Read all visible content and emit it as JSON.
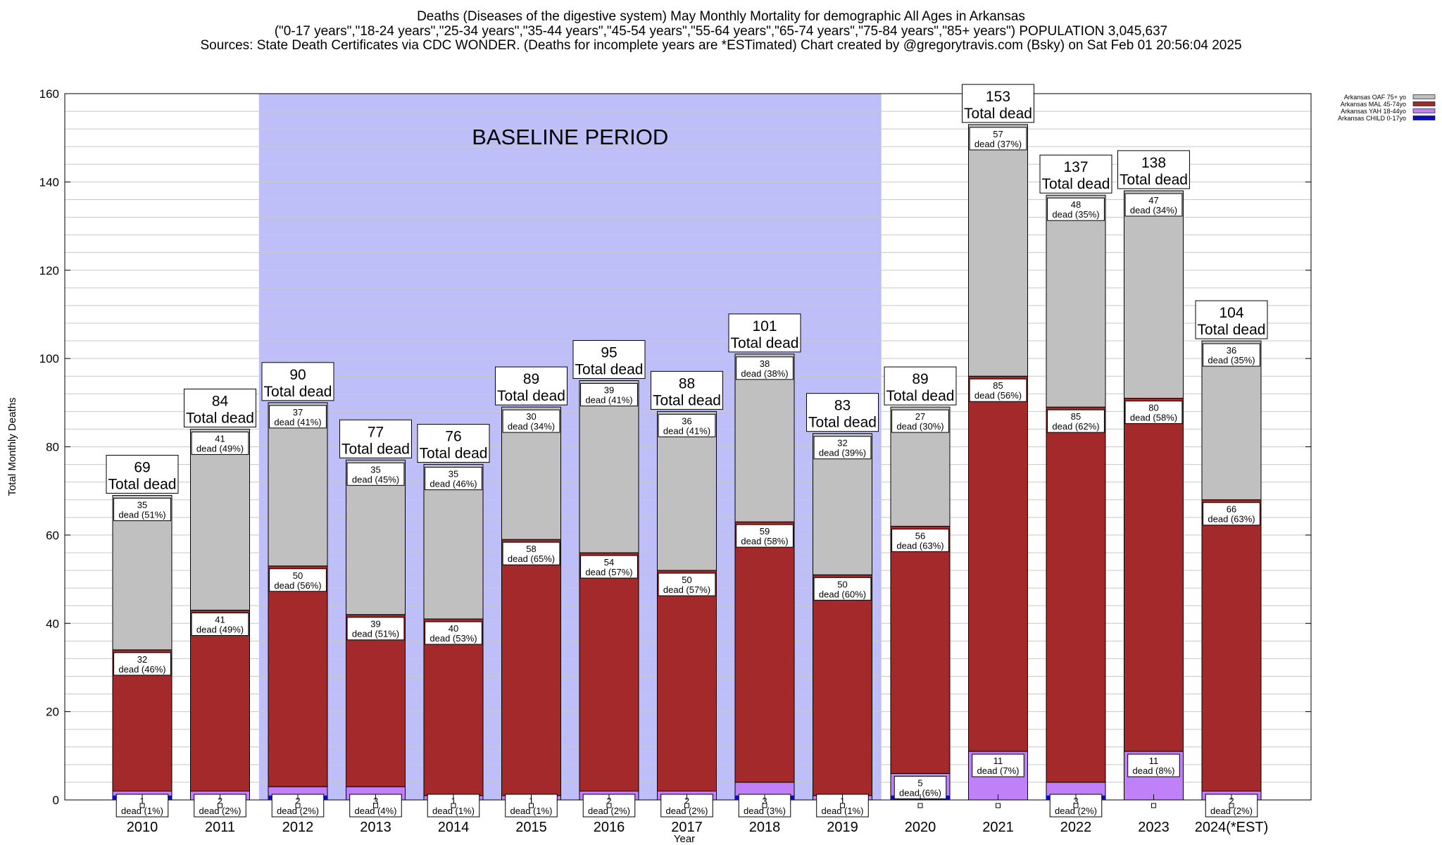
{
  "title": {
    "line1": "Deaths (Diseases of the digestive system) May Monthly Mortality for demographic All Ages in Arkansas",
    "line2": "(\"0-17 years\",\"18-24 years\",\"25-34 years\",\"35-44 years\",\"45-54 years\",\"55-64 years\",\"65-74 years\",\"75-84 years\",\"85+ years\") POPULATION 3,045,637",
    "line3": "Sources: State Death Certificates via CDC WONDER. (Deaths for incomplete years are *ESTimated)                Chart created by @gregorytravis.com (Bsky) on Sat Feb 01 20:56:04 2025"
  },
  "colors": {
    "child": "#0a0ad0",
    "yah": "#c080f8",
    "mal": "#a4292a",
    "oaf": "#c0c0c0",
    "baseline": "#bebef8",
    "grid": "#c8c8c8"
  },
  "chart_data": {
    "type": "bar",
    "stacked": true,
    "xlabel": "Year",
    "ylabel": "Total Monthly Deaths",
    "ylim": [
      0,
      160
    ],
    "yticks": [
      0,
      20,
      40,
      60,
      80,
      100,
      120,
      140,
      160
    ],
    "grid": true,
    "legend_position": "top-right",
    "baseline_label": "BASELINE PERIOD",
    "baseline_range": [
      "2012",
      "2019"
    ],
    "total_label": "Total dead",
    "dead_word": "dead",
    "categories": [
      "2010",
      "2011",
      "2012",
      "2013",
      "2014",
      "2015",
      "2016",
      "2017",
      "2018",
      "2019",
      "2020",
      "2021",
      "2022",
      "2023",
      "2024(*EST)"
    ],
    "totals": [
      69,
      84,
      90,
      77,
      76,
      89,
      95,
      88,
      101,
      83,
      89,
      153,
      137,
      138,
      104
    ],
    "series": [
      {
        "name": "Arkansas CHILD 0-17yo",
        "key": "child",
        "values": [
          1,
          0,
          1,
          0,
          0,
          0,
          0,
          0,
          1,
          0,
          1,
          0,
          1,
          0,
          0
        ]
      },
      {
        "name": "Arkansas YAH 18-44yo",
        "key": "yah",
        "values": [
          1,
          2,
          2,
          3,
          1,
          1,
          2,
          2,
          3,
          1,
          5,
          11,
          3,
          11,
          2
        ],
        "percents": [
          "1%",
          "2%",
          "2%",
          "4%",
          "1%",
          "1%",
          "2%",
          "2%",
          "3%",
          "1%",
          "6%",
          "7%",
          "2%",
          "8%",
          "2%"
        ]
      },
      {
        "name": "Arkansas MAL 45-74yo",
        "key": "mal",
        "values": [
          32,
          41,
          50,
          39,
          40,
          58,
          54,
          50,
          59,
          50,
          56,
          85,
          85,
          80,
          66
        ],
        "percents": [
          "46%",
          "49%",
          "56%",
          "51%",
          "53%",
          "65%",
          "57%",
          "57%",
          "58%",
          "60%",
          "63%",
          "56%",
          "62%",
          "58%",
          "63%"
        ]
      },
      {
        "name": "Arkansas OAF 75+ yo",
        "key": "oaf",
        "values": [
          35,
          41,
          37,
          35,
          35,
          30,
          39,
          36,
          38,
          32,
          27,
          57,
          48,
          47,
          36
        ],
        "percents": [
          "51%",
          "49%",
          "41%",
          "45%",
          "46%",
          "34%",
          "41%",
          "41%",
          "38%",
          "39%",
          "30%",
          "37%",
          "35%",
          "34%",
          "35%"
        ]
      }
    ],
    "legend_order": [
      "oaf",
      "mal",
      "yah",
      "child"
    ]
  }
}
